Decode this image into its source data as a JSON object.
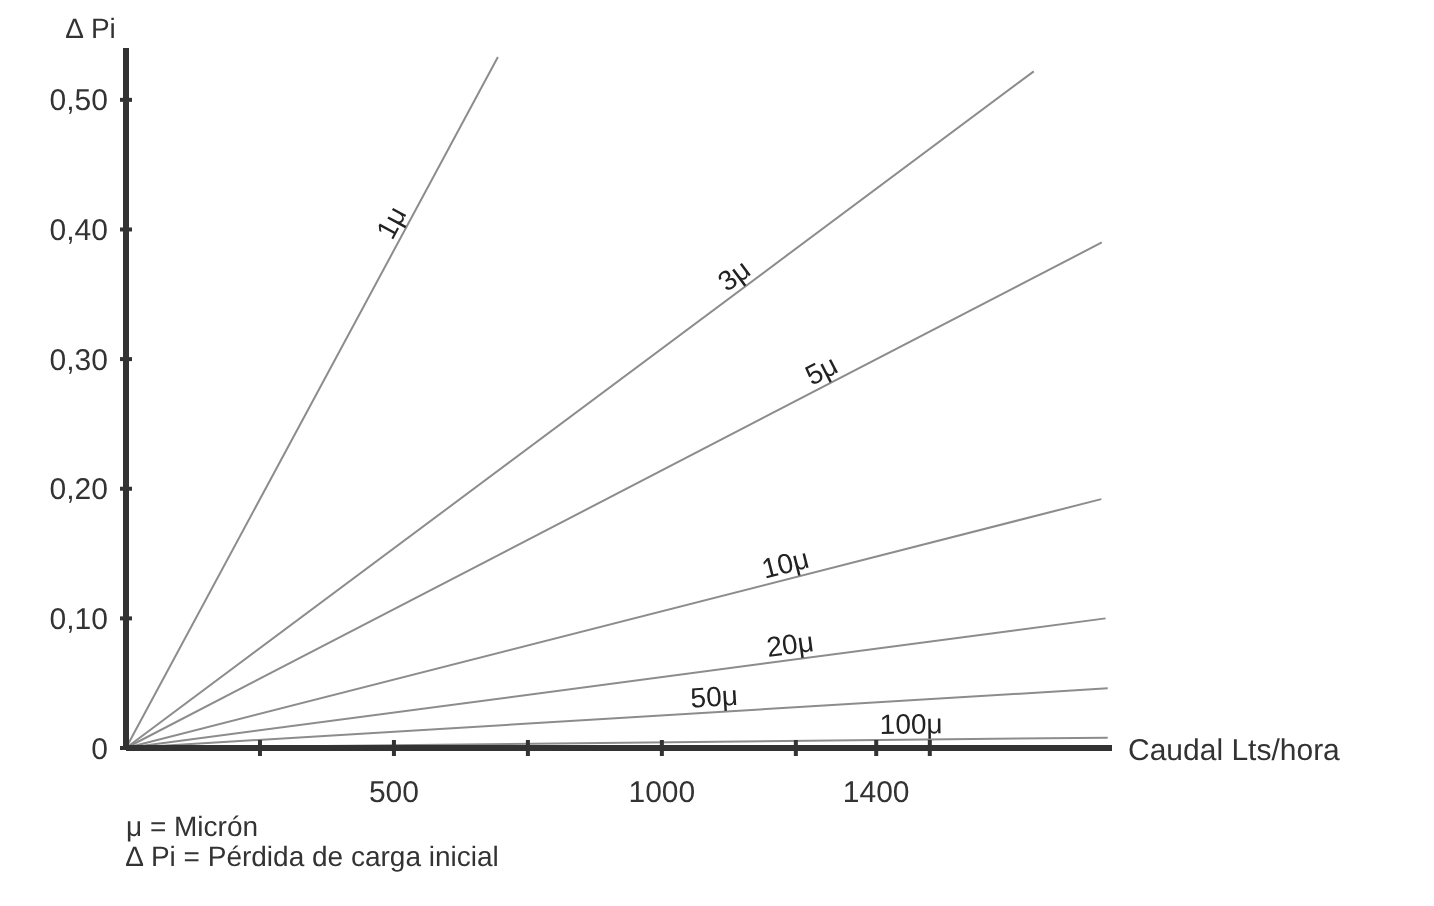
{
  "chart_data": {
    "type": "line",
    "xlabel": "Caudal Lts/hora",
    "ylabel": "∆ Pi",
    "xlim": [
      0,
      1840
    ],
    "ylim": [
      0,
      0.54
    ],
    "xticks": [
      {
        "value": 250,
        "label": null
      },
      500,
      {
        "value": 750,
        "label": null
      },
      1000,
      {
        "value": 1250,
        "label": null
      },
      1400,
      {
        "value": 1500,
        "label": null
      }
    ],
    "yticks": [
      0,
      {
        "value": 0.1,
        "label": "0,10"
      },
      {
        "value": 0.2,
        "label": "0,20"
      },
      {
        "value": 0.3,
        "label": "0,30"
      },
      {
        "value": 0.4,
        "label": "0,40"
      },
      {
        "value": 0.5,
        "label": "0,50"
      }
    ],
    "marker": "none",
    "line_style": "solid",
    "series": [
      {
        "name": "1μ",
        "color": "#8c8c8c",
        "x": [
          0,
          694
        ],
        "values": [
          0,
          0.533
        ]
      },
      {
        "name": "3μ",
        "color": "#8c8c8c",
        "x": [
          0,
          1694
        ],
        "values": [
          0,
          0.522
        ]
      },
      {
        "name": "5μ",
        "color": "#8c8c8c",
        "x": [
          0,
          1821
        ],
        "values": [
          0,
          0.39
        ]
      },
      {
        "name": "10μ",
        "color": "#8c8c8c",
        "x": [
          0,
          1820
        ],
        "values": [
          0,
          0.192
        ]
      },
      {
        "name": "20μ",
        "color": "#8c8c8c",
        "x": [
          0,
          1828
        ],
        "values": [
          0,
          0.1
        ]
      },
      {
        "name": "50μ",
        "color": "#8c8c8c",
        "x": [
          0,
          1832
        ],
        "values": [
          0,
          0.046
        ]
      },
      {
        "name": "100μ",
        "color": "#8c8c8c",
        "x": [
          0,
          1832
        ],
        "values": [
          0,
          0.008
        ]
      }
    ],
    "annotations": [
      "μ = Micrón",
      "∆ Pi = Pérdida de carga inicial"
    ]
  }
}
